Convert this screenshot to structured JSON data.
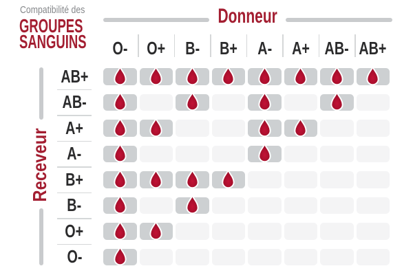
{
  "title": {
    "subtitle": "Compatibilité des",
    "main_line1": "GROUPES",
    "main_line2": "SANGUINS"
  },
  "axes": {
    "donor_label": "Donneur",
    "receiver_label": "Receveur"
  },
  "chart_data": {
    "type": "heatmap",
    "title": "Compatibilité des groupes sanguins",
    "x_label": "Donneur",
    "y_label": "Receveur",
    "columns": [
      "O-",
      "O+",
      "B-",
      "B+",
      "A-",
      "A+",
      "AB-",
      "AB+"
    ],
    "rows": [
      "AB+",
      "AB-",
      "A+",
      "A-",
      "B+",
      "B-",
      "O+",
      "O-"
    ],
    "matrix": [
      [
        1,
        1,
        1,
        1,
        1,
        1,
        1,
        1
      ],
      [
        1,
        0,
        1,
        0,
        1,
        0,
        1,
        0
      ],
      [
        1,
        1,
        0,
        0,
        1,
        1,
        0,
        0
      ],
      [
        1,
        0,
        0,
        0,
        1,
        0,
        0,
        0
      ],
      [
        1,
        1,
        1,
        1,
        0,
        0,
        0,
        0
      ],
      [
        1,
        0,
        1,
        0,
        0,
        0,
        0,
        0
      ],
      [
        1,
        1,
        0,
        0,
        0,
        0,
        0,
        0
      ],
      [
        1,
        0,
        0,
        0,
        0,
        0,
        0,
        0
      ]
    ],
    "marker_icon": "blood-drop-icon",
    "compatible_value_meaning": "drop shown = donor compatible with receiver"
  },
  "colors": {
    "accent_red": "#A31E31",
    "drop_red_light": "#C21236",
    "drop_red": "#A80F2C",
    "drop_red_dark": "#8C0B23",
    "filled_cell": "#CDD0D2",
    "empty_cell": "#F4F4F5",
    "separator": "#D5D7D8",
    "bar_gray": "#C9CBCD",
    "text_dark": "#2B2B2C",
    "text_gray": "#85878A"
  }
}
